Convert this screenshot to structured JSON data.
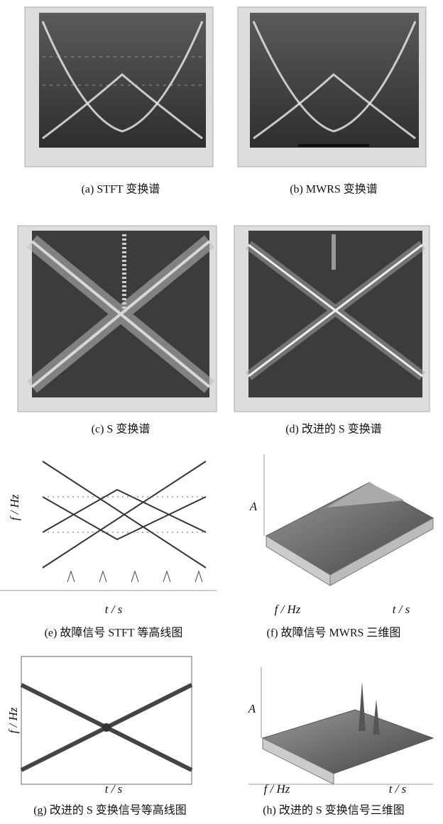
{
  "panels": [
    {
      "caption": "(a) STFT 变换谱"
    },
    {
      "caption": "(b) MWRS 变换谱"
    },
    {
      "caption": "(c) S 变换谱"
    },
    {
      "caption": "(d) 改进的 S 变换谱"
    },
    {
      "caption": "(e) 故障信号 STFT 等高线图",
      "y_label": "f / Hz",
      "x_label": "t / s"
    },
    {
      "caption": "(f) 故障信号 MWRS 三维图",
      "z_label": "A",
      "x_label": "f / Hz",
      "y_label": "t / s"
    },
    {
      "caption": "(g) 改进的 S 变换信号等高线图",
      "y_label": "f / Hz",
      "x_label": "t / s"
    },
    {
      "caption": "(h) 改进的 S 变换信号三维图",
      "z_label": "A",
      "x_label": "f / Hz",
      "y_label": "t / s"
    }
  ]
}
